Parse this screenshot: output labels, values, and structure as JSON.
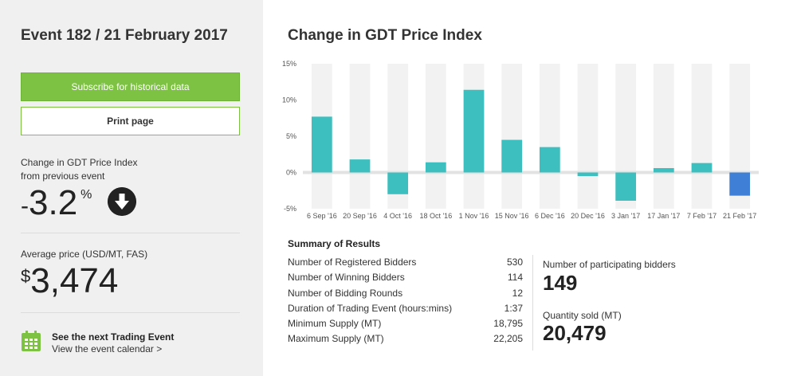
{
  "sidebar": {
    "event_title": "Event 182 / 21 February 2017",
    "subscribe_label": "Subscribe for historical data",
    "print_label": "Print page",
    "change_label_line1": "Change in GDT Price Index",
    "change_label_line2": "from previous event",
    "change_sign": "-",
    "change_value": "3.2",
    "change_unit": "%",
    "avg_label": "Average price (USD/MT, FAS)",
    "avg_currency": "$",
    "avg_value": "3,474",
    "next_title": "See the next Trading Event",
    "next_link": "View the event calendar >"
  },
  "colors": {
    "green": "#7dc242",
    "bar_teal": "#3dbfbf",
    "bar_highlight": "#3f7fd6"
  },
  "chart_title": "Change in GDT Price Index",
  "chart_data": {
    "type": "bar",
    "categories": [
      "6 Sep '16",
      "20 Sep '16",
      "4 Oct '16",
      "18 Oct '16",
      "1 Nov '16",
      "15 Nov '16",
      "6 Dec '16",
      "20 Dec '16",
      "3 Jan '17",
      "17 Jan '17",
      "7 Feb '17",
      "21 Feb '17"
    ],
    "values": [
      7.7,
      1.8,
      -3.0,
      1.4,
      11.4,
      4.5,
      3.5,
      -0.5,
      -3.9,
      0.6,
      1.3,
      -3.2
    ],
    "highlight_index": 11,
    "y_ticks": [
      "15%",
      "10%",
      "5%",
      "0%",
      "-5%"
    ],
    "ylim": [
      -5,
      15
    ],
    "grid": false
  },
  "summary": {
    "title": "Summary of Results",
    "rows": [
      {
        "label": "Number of Registered Bidders",
        "value": "530"
      },
      {
        "label": "Number of Winning Bidders",
        "value": "114"
      },
      {
        "label": "Number of Bidding Rounds",
        "value": "12"
      },
      {
        "label": "Duration of Trading Event (hours:mins)",
        "value": "1:37"
      },
      {
        "label": "Minimum Supply (MT)",
        "value": "18,795"
      },
      {
        "label": "Maximum Supply (MT)",
        "value": "22,205"
      }
    ],
    "participating_label": "Number of participating bidders",
    "participating_value": "149",
    "quantity_label": "Quantity sold (MT)",
    "quantity_value": "20,479"
  }
}
